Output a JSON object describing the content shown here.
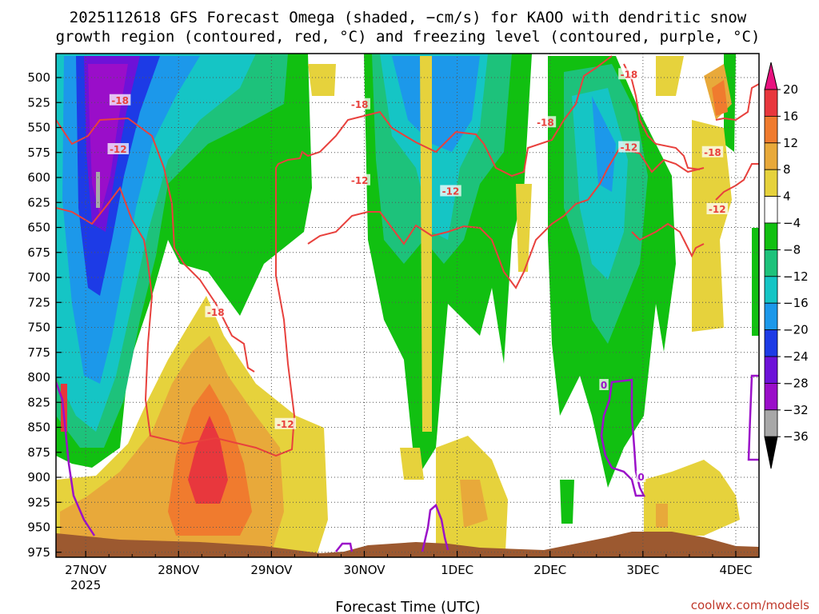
{
  "chart_data": {
    "type": "heatmap",
    "title_lines": [
      "2025112618 GFS Forecast Omega (shaded, −cm/s) for KAOO with dendritic snow",
      "growth region (contoured, red, °C) and freezing level (contoured, purple, °C)"
    ],
    "xlabel": "Forecast Time (UTC)",
    "ylabel": "",
    "credit": "coolwx.com/models",
    "x_ticks": [
      {
        "label": "27NOV",
        "sublabel": "2025",
        "day": 27
      },
      {
        "label": "28NOV",
        "sublabel": "",
        "day": 28
      },
      {
        "label": "29NOV",
        "sublabel": "",
        "day": 29
      },
      {
        "label": "30NOV",
        "sublabel": "",
        "day": 30
      },
      {
        "label": "1DEC",
        "sublabel": "",
        "day": 31
      },
      {
        "label": "2DEC",
        "sublabel": "",
        "day": 32
      },
      {
        "label": "3DEC",
        "sublabel": "",
        "day": 33
      },
      {
        "label": "4DEC",
        "sublabel": "",
        "day": 34
      }
    ],
    "xlim_days": [
      26.68,
      34.25
    ],
    "y_ticks": [
      500,
      525,
      550,
      575,
      600,
      625,
      650,
      675,
      700,
      725,
      750,
      775,
      800,
      825,
      850,
      875,
      900,
      925,
      950,
      975
    ],
    "ylim_hpa": [
      476,
      980
    ],
    "grid": true,
    "colorbar": {
      "labels": [
        "20",
        "16",
        "12",
        "8",
        "4",
        "−4",
        "−8",
        "−12",
        "−16",
        "−20",
        "−24",
        "−28",
        "−32",
        "−36"
      ],
      "colors": [
        "#e8373d",
        "#f07b2e",
        "#e8a93a",
        "#e6d23c",
        "#ffffff",
        "#11c011",
        "#1dc27b",
        "#15c5c5",
        "#1c98ea",
        "#1d3be6",
        "#6d12d8",
        "#9a0ec9",
        "#a8a8a8"
      ],
      "top_arrow": "#e8127f",
      "bottom_arrow": "#000000"
    },
    "contour_labels": [
      {
        "text": "-18",
        "kind": "dgz",
        "day": 27.37,
        "hpa": 523
      },
      {
        "text": "-12",
        "kind": "dgz",
        "day": 27.35,
        "hpa": 572
      },
      {
        "text": "-18",
        "kind": "dgz",
        "day": 28.4,
        "hpa": 735
      },
      {
        "text": "-12",
        "kind": "dgz",
        "day": 29.15,
        "hpa": 847
      },
      {
        "text": "-18",
        "kind": "dgz",
        "day": 29.95,
        "hpa": 527
      },
      {
        "text": "-12",
        "kind": "dgz",
        "day": 29.95,
        "hpa": 603
      },
      {
        "text": "-12",
        "kind": "dgz",
        "day": 30.93,
        "hpa": 614
      },
      {
        "text": "-18",
        "kind": "dgz",
        "day": 31.95,
        "hpa": 545
      },
      {
        "text": "-18",
        "kind": "dgz",
        "day": 32.85,
        "hpa": 497
      },
      {
        "text": "-12",
        "kind": "dgz",
        "day": 32.85,
        "hpa": 570
      },
      {
        "text": "-18",
        "kind": "dgz",
        "day": 33.75,
        "hpa": 575
      },
      {
        "text": "-12",
        "kind": "dgz",
        "day": 33.8,
        "hpa": 632
      },
      {
        "text": "0",
        "kind": "freezing",
        "day": 32.58,
        "hpa": 808
      },
      {
        "text": "0",
        "kind": "freezing",
        "day": 32.98,
        "hpa": 900
      }
    ]
  }
}
